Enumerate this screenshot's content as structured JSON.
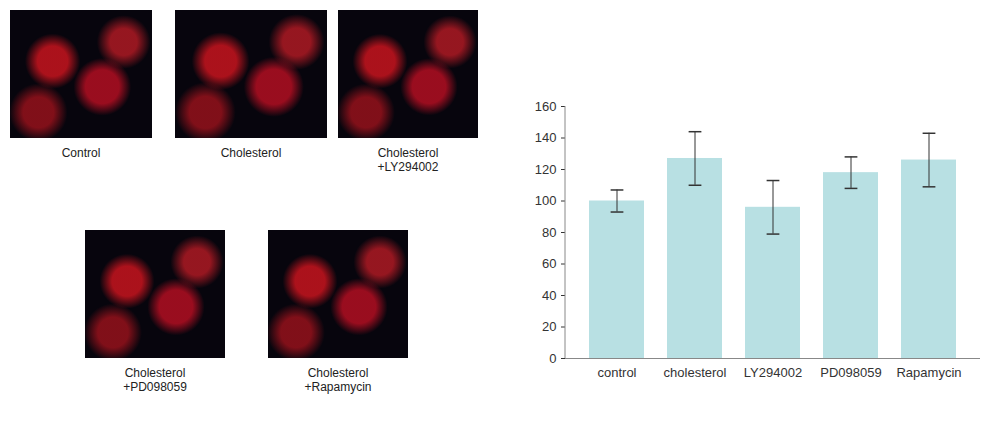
{
  "chart_data": {
    "type": "bar",
    "annotations": [
      "Control",
      "Cholesterol",
      "Cholesterol\n+LY294002",
      "Cholesterol\n+PD098059",
      "Cholesterol\n+Rapamycin"
    ],
    "categories": [
      "control",
      "cholesterol",
      "LY294002",
      "PD098059",
      "Rapamycin"
    ],
    "values": [
      100,
      127,
      96,
      118,
      126
    ],
    "errors": [
      7,
      17,
      17,
      10,
      17
    ],
    "color": "#b8e0e3",
    "ylim": [
      0,
      160
    ],
    "yticks": [
      0,
      20,
      40,
      60,
      80,
      100,
      120,
      140,
      160
    ],
    "grid": false
  }
}
